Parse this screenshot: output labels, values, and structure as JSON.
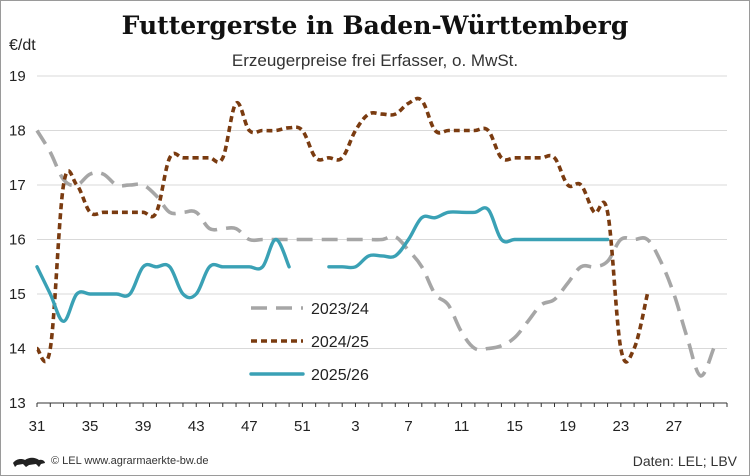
{
  "header": {
    "title": "Futtergerste in Baden-Württemberg",
    "subtitle": "Erzeugerpreise frei Erfasser, o. MwSt.",
    "unit": "€/dt"
  },
  "footer": {
    "credit": "© LEL www.agrarmaerkte-bw.de",
    "source": "Daten: LEL; LBV"
  },
  "chart_data": {
    "type": "line",
    "ylim": [
      13,
      19
    ],
    "yticks": [
      13,
      14,
      15,
      16,
      17,
      18,
      19
    ],
    "x_count": 52,
    "x_tick_labels": [
      "31",
      "35",
      "39",
      "43",
      "47",
      "51",
      "3",
      "7",
      "11",
      "15",
      "19",
      "23",
      "27"
    ],
    "grid": true,
    "legend_placement": "bottom-center",
    "series": [
      {
        "name": "2023/24",
        "color": "#a6a6a6",
        "dash": "dashed",
        "values": [
          18.0,
          17.6,
          17.1,
          17.0,
          17.2,
          17.2,
          17.0,
          17.0,
          17.0,
          16.8,
          16.5,
          16.5,
          16.5,
          16.2,
          16.2,
          16.2,
          16.0,
          16.0,
          16.0,
          16.0,
          16.0,
          16.0,
          16.0,
          16.0,
          16.0,
          16.0,
          16.0,
          16.05,
          15.8,
          15.5,
          15.0,
          14.8,
          14.3,
          14.0,
          14.0,
          14.05,
          14.2,
          14.5,
          14.8,
          14.9,
          15.2,
          15.5,
          15.5,
          15.6,
          16.0,
          16.0,
          16.0,
          15.6,
          15.0,
          14.2,
          13.5,
          14.0
        ]
      },
      {
        "name": "2024/25",
        "color": "#7a3b10",
        "dash": "dotted",
        "values": [
          14.0,
          14.0,
          17.0,
          17.0,
          16.5,
          16.5,
          16.5,
          16.5,
          16.5,
          16.5,
          17.5,
          17.5,
          17.5,
          17.5,
          17.5,
          18.5,
          18.0,
          18.0,
          18.0,
          18.05,
          18.0,
          17.5,
          17.5,
          17.5,
          18.0,
          18.3,
          18.3,
          18.3,
          18.5,
          18.55,
          18.0,
          18.0,
          18.0,
          18.0,
          18.0,
          17.5,
          17.5,
          17.5,
          17.5,
          17.5,
          17.0,
          17.0,
          16.5,
          16.5,
          14.0,
          14.0,
          15.0
        ]
      },
      {
        "name": "2025/26",
        "color": "#3aa1b5",
        "dash": "solid",
        "values": [
          15.5,
          15.0,
          14.5,
          15.0,
          15.0,
          15.0,
          15.0,
          15.0,
          15.5,
          15.5,
          15.5,
          15.0,
          15.0,
          15.5,
          15.5,
          15.5,
          15.5,
          15.5,
          16.0,
          15.5,
          null,
          null,
          15.5,
          15.5,
          15.5,
          15.7,
          15.7,
          15.7,
          16.0,
          16.4,
          16.4,
          16.5,
          16.5,
          16.5,
          16.55,
          16.0,
          16.0,
          16.0,
          16.0,
          16.0,
          16.0,
          16.0,
          16.0,
          16.0
        ]
      }
    ]
  }
}
